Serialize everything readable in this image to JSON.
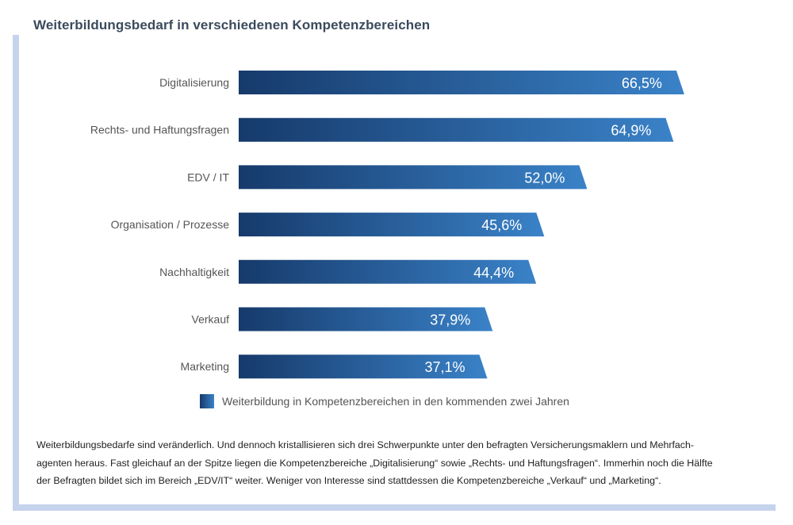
{
  "title": "Weiterbildungsbedarf in verschiedenen Kompetenzbereichen",
  "chart_data": {
    "type": "bar",
    "orientation": "horizontal",
    "categories": [
      "Digitalisierung",
      "Rechts- und Haftungsfragen",
      "EDV / IT",
      "Organisation / Prozesse",
      "Nachhaltigkeit",
      "Verkauf",
      "Marketing"
    ],
    "series": [
      {
        "name": "Weiterbildung in Kompetenzbereichen in den kommenden zwei Jahren",
        "values": [
          66.5,
          64.9,
          52.0,
          45.6,
          44.4,
          37.9,
          37.1
        ],
        "labels": [
          "66,5%",
          "64,9%",
          "52,0%",
          "45,6%",
          "44,4%",
          "37,9%",
          "37,1%"
        ]
      }
    ],
    "xlim": [
      0,
      100
    ],
    "grid": false,
    "legend_position": "bottom",
    "colors": {
      "bar_start": "#163a6b",
      "bar_end": "#3a82c8"
    }
  },
  "legend": {
    "label": "Weiterbildung in Kompetenzbereichen in den kommenden zwei Jahren"
  },
  "caption": {
    "line1": "Weiterbildungsbedarfe sind veränderlich. Und dennoch kristallisieren sich drei Schwerpunkte unter den befragten Versicherungsmaklern und Mehrfach-",
    "line2": "agenten heraus. Fast gleichauf an der Spitze liegen die Kompetenzbereiche „Digitalisierung“ sowie „Rechts- und Haftungsfragen“. Immerhin noch die Hälfte",
    "line3": "der Befragten bildet sich im Bereich „EDV/IT“ weiter. Weniger von Interesse sind stattdessen die Kompetenzbereiche „Verkauf“ und „Marketing“."
  }
}
